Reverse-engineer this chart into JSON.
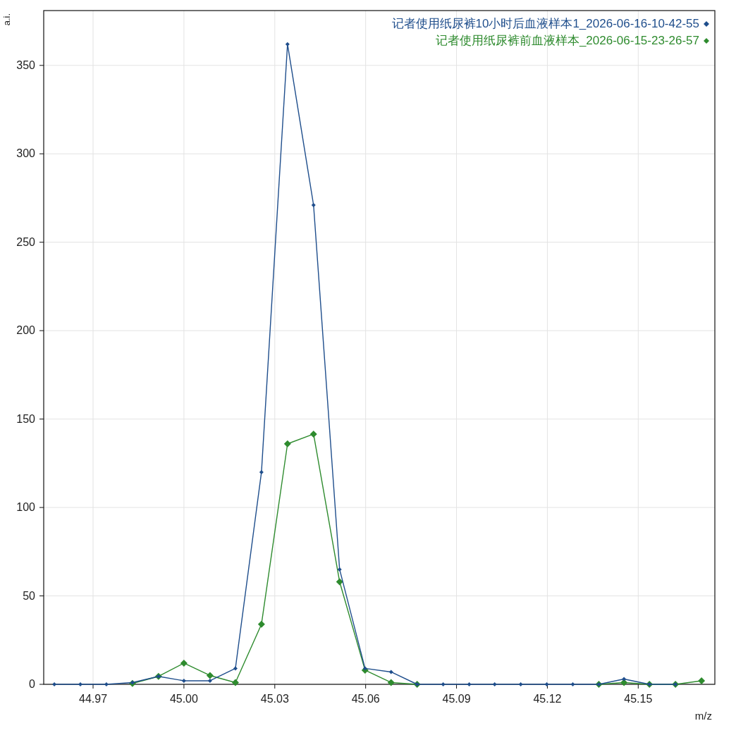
{
  "chart_data": {
    "type": "line",
    "xlabel": "m/z",
    "ylabel": "a.i.",
    "x": [
      44.9572,
      44.9658,
      44.9744,
      44.983,
      44.9916,
      45.0,
      45.0086,
      45.017,
      45.0256,
      45.0342,
      45.0428,
      45.0514,
      45.0598,
      45.0684,
      45.077,
      45.0856,
      45.0942,
      45.1026,
      45.1112,
      45.1198,
      45.1284,
      45.137,
      45.1453,
      45.1537,
      45.1623,
      45.1709
    ],
    "series": [
      {
        "name": "记者使用纸尿裤10小时后血液样本1_2026-06-16-10-42-55",
        "color": "#1f4e8c",
        "values": [
          0,
          0,
          0,
          1,
          4.5,
          2,
          2,
          9,
          120,
          362,
          271,
          65,
          9,
          7,
          0,
          0,
          0,
          0,
          0,
          0,
          0,
          0,
          3,
          0,
          0,
          null
        ]
      },
      {
        "name": "记者使用纸尿裤前血液样本_2026-06-15-23-26-57",
        "color": "#2e8b2e",
        "values": [
          null,
          null,
          null,
          0.5,
          4.5,
          12,
          5,
          1,
          34,
          136,
          141.5,
          58,
          8,
          1,
          0,
          null,
          null,
          null,
          null,
          null,
          null,
          0,
          1,
          0,
          0,
          2
        ]
      }
    ],
    "xlim": [
      44.9537,
      45.1753
    ],
    "xticks": [
      44.97,
      {
        "value": 45.0,
        "label": "45.00"
      },
      45.03,
      45.06,
      45.09,
      45.12,
      45.15
    ],
    "ylim": [
      0,
      381
    ],
    "yticks": [
      0,
      50,
      100,
      150,
      200,
      250,
      300,
      350
    ],
    "grid": true,
    "legend": "top right",
    "marker": "diamond",
    "line_style": "solid"
  }
}
